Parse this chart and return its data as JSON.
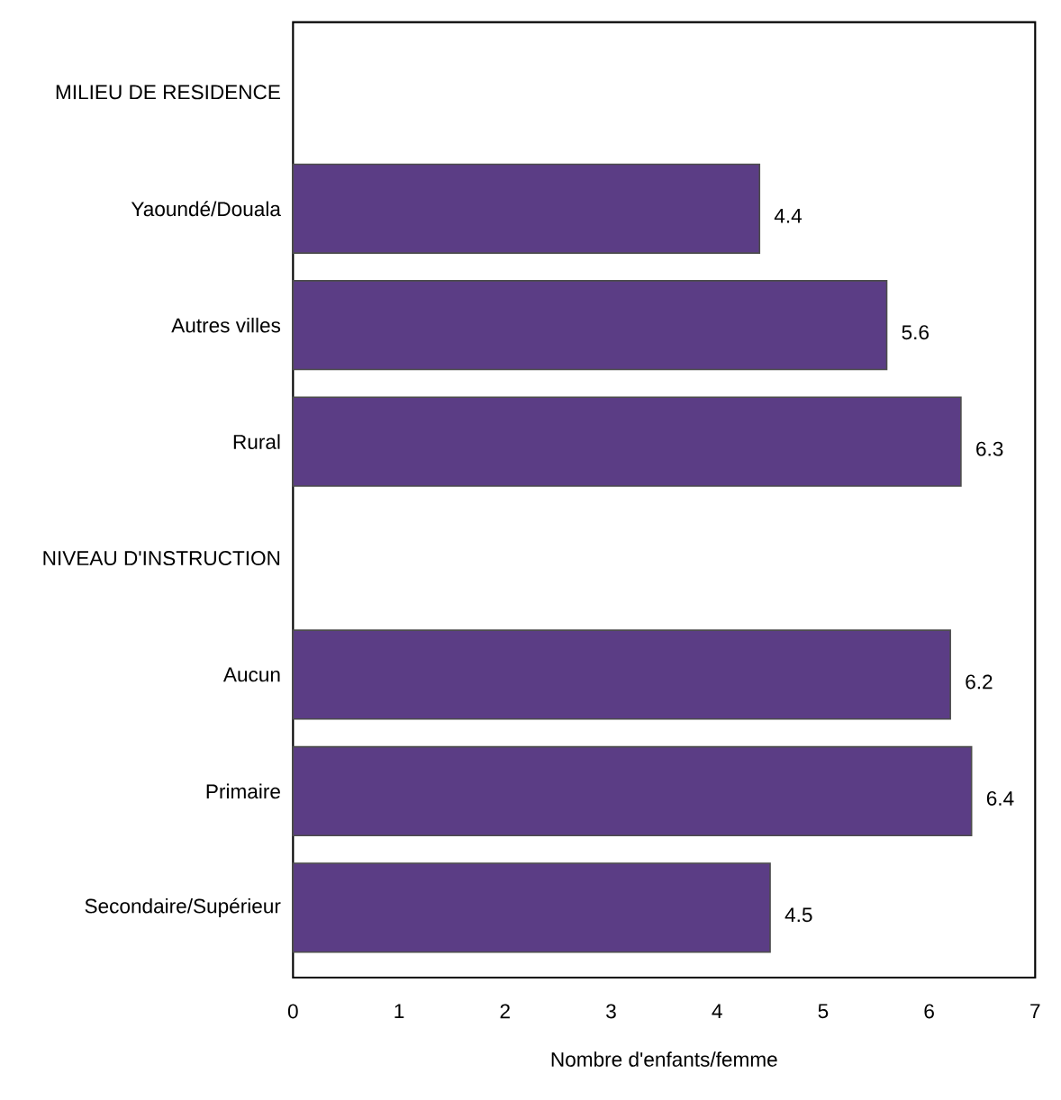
{
  "chart_data": {
    "type": "bar",
    "orientation": "horizontal",
    "categories": [
      "MILIEU DE RESIDENCE",
      "Yaoundé/Douala",
      "Autres villes",
      "Rural",
      "NIVEAU D'INSTRUCTION",
      "Aucun",
      "Primaire",
      "Secondaire/Supérieur"
    ],
    "values": [
      null,
      4.4,
      5.6,
      6.3,
      null,
      6.2,
      6.4,
      4.5
    ],
    "color": "#5b3d85",
    "xlim": [
      0,
      7
    ],
    "xticks": [
      0,
      1,
      2,
      3,
      4,
      5,
      6,
      7
    ],
    "xlabel": "Nombre d'enfants/femme",
    "data_labels": true
  }
}
